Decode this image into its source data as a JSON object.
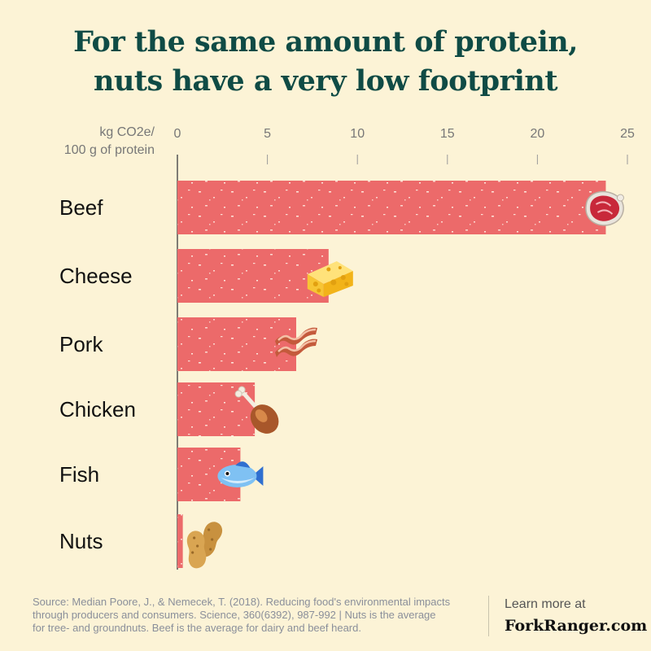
{
  "title_line1": "For the same amount of protein,",
  "title_line2": "nuts have a very low footprint",
  "unit_line1": "kg CO2e/",
  "unit_line2": "100 g of protein",
  "colors": {
    "background": "#fcf3d6",
    "bar": "#ec6a6a",
    "title": "#0f4b45",
    "grid": "#9a9a9a"
  },
  "chart_data": {
    "type": "bar",
    "orientation": "horizontal",
    "categories": [
      "Beef",
      "Cheese",
      "Pork",
      "Chicken",
      "Fish",
      "Nuts"
    ],
    "values": [
      23.8,
      8.4,
      6.6,
      4.3,
      3.5,
      0.3
    ],
    "icons": [
      "steak-icon",
      "cheese-icon",
      "bacon-icon",
      "drumstick-icon",
      "fish-icon",
      "peanut-icon"
    ],
    "xlim": [
      0,
      25
    ],
    "xticks": [
      0,
      5,
      10,
      15,
      20,
      25
    ],
    "grid": true,
    "title": "For the same amount of protein, nuts have a very low footprint",
    "xlabel": "kg CO2e/ 100 g of protein"
  },
  "footer": {
    "source_line1": "Source: Median Poore, J., & Nemecek, T. (2018). Reducing food's environmental impacts",
    "source_line2": "through producers and consumers. Science, 360(6392), 987-992 | Nuts is the average",
    "source_line3": "for tree- and groundnuts. Beef is the average for dairy and beef heard.",
    "learn_more": "Learn more at",
    "site": "ForkRanger.com"
  }
}
